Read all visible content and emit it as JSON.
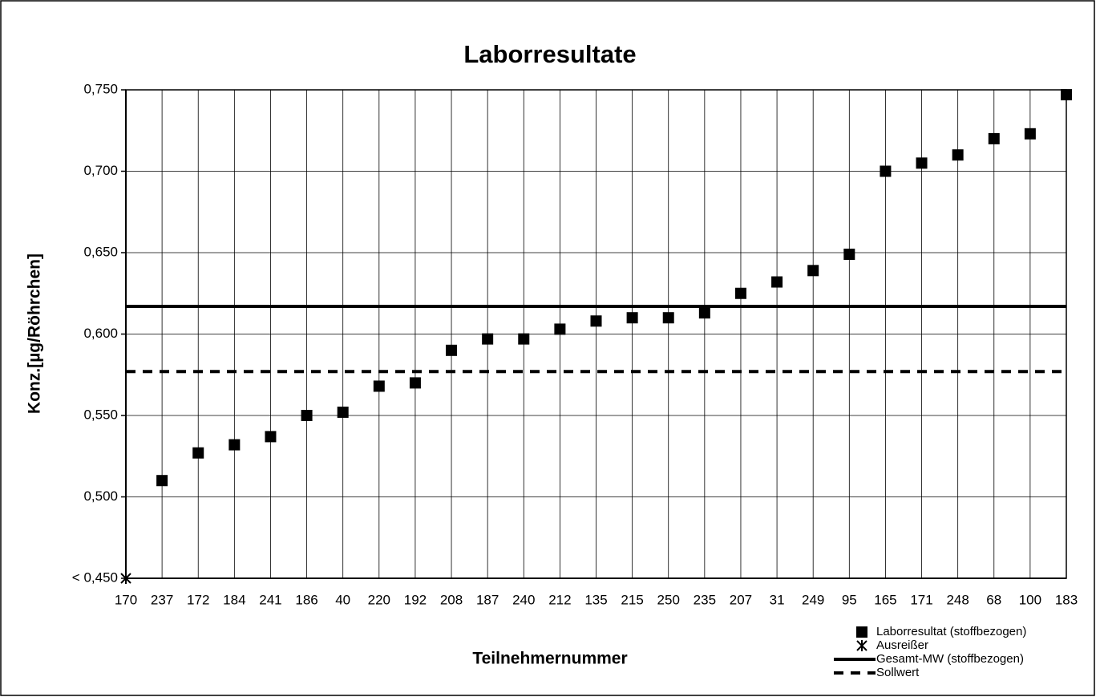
{
  "chart_data": {
    "type": "scatter",
    "title": "Laborresultate",
    "x_label": "Teilnehmernummer",
    "y_label": "Konz.[µg/Röhrchen]",
    "categories": [
      "170",
      "237",
      "172",
      "184",
      "241",
      "186",
      "40",
      "220",
      "192",
      "208",
      "187",
      "240",
      "212",
      "135",
      "215",
      "250",
      "235",
      "207",
      "31",
      "249",
      "95",
      "165",
      "171",
      "248",
      "68",
      "100",
      "183"
    ],
    "series": [
      {
        "name": "Laborresultat (stoffbezogen)",
        "marker": "square",
        "color": "#000000",
        "values": [
          null,
          0.51,
          0.527,
          0.532,
          0.537,
          0.55,
          0.552,
          0.568,
          0.57,
          0.59,
          0.597,
          0.597,
          0.603,
          0.608,
          0.61,
          0.61,
          0.613,
          0.625,
          0.632,
          0.639,
          0.649,
          0.7,
          0.705,
          0.71,
          0.72,
          0.723,
          0.747
        ]
      },
      {
        "name": "Ausreißer",
        "marker": "x",
        "color": "#000000",
        "values": [
          0.45,
          null,
          null,
          null,
          null,
          null,
          null,
          null,
          null,
          null,
          null,
          null,
          null,
          null,
          null,
          null,
          null,
          null,
          null,
          null,
          null,
          null,
          null,
          null,
          null,
          null,
          null
        ]
      }
    ],
    "reference_lines": [
      {
        "name": "Gesamt-MW (stoffbezogen)",
        "value": 0.617,
        "style": "solid",
        "color": "#000000"
      },
      {
        "name": "Sollwert",
        "value": 0.577,
        "style": "dashed",
        "color": "#000000"
      }
    ],
    "ylim": [
      0.45,
      0.75
    ],
    "yticks": [
      {
        "value": 0.45,
        "label": "< 0,450"
      },
      {
        "value": 0.5,
        "label": "0,500"
      },
      {
        "value": 0.55,
        "label": "0,550"
      },
      {
        "value": 0.6,
        "label": "0,600"
      },
      {
        "value": 0.65,
        "label": "0,650"
      },
      {
        "value": 0.7,
        "label": "0,700"
      },
      {
        "value": 0.75,
        "label": "0,750"
      }
    ],
    "grid": true,
    "legend": "bottom-right"
  }
}
